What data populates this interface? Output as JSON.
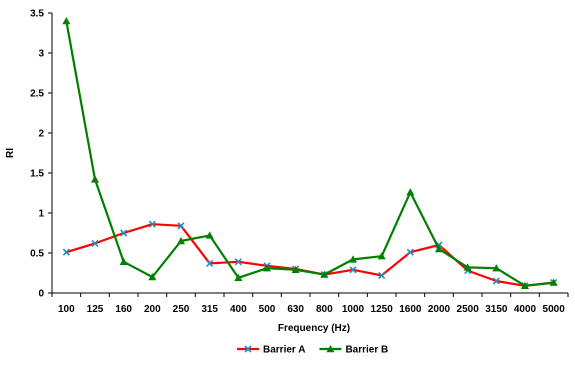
{
  "chart_data": {
    "type": "line",
    "title": "",
    "xlabel": "Frequency (Hz)",
    "ylabel": "RI",
    "ylim": [
      0,
      3.5
    ],
    "yticks": [
      "0",
      "0.5",
      "1",
      "1.5",
      "2",
      "2.5",
      "3",
      "3.5"
    ],
    "grid": false,
    "legend": "bottom",
    "categories": [
      "100",
      "125",
      "160",
      "200",
      "250",
      "315",
      "400",
      "500",
      "630",
      "800",
      "1000",
      "1250",
      "1600",
      "2000",
      "2500",
      "3150",
      "4000",
      "5000"
    ],
    "series": [
      {
        "name": "Barrier A",
        "color": "#ff0000",
        "marker": "x-marker-icon",
        "marker_color": "#1f8fc0",
        "values": [
          0.51,
          0.62,
          0.75,
          0.86,
          0.84,
          0.37,
          0.39,
          0.34,
          0.3,
          0.23,
          0.29,
          0.22,
          0.51,
          0.6,
          0.28,
          0.15,
          0.09,
          0.13
        ]
      },
      {
        "name": "Barrier B",
        "color": "#008000",
        "marker": "triangle-marker-icon",
        "marker_color": "#008000",
        "values": [
          3.4,
          1.42,
          0.39,
          0.2,
          0.65,
          0.72,
          0.19,
          0.31,
          0.29,
          0.23,
          0.42,
          0.46,
          1.26,
          0.55,
          0.32,
          0.31,
          0.09,
          0.13
        ]
      }
    ]
  }
}
